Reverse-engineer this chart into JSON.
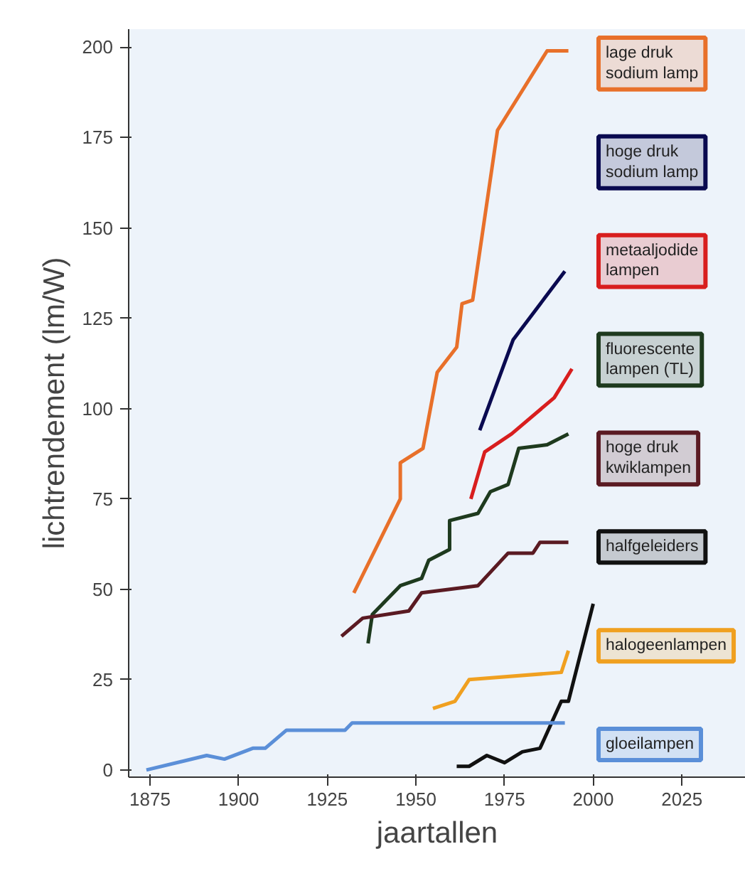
{
  "chart_data": {
    "type": "line",
    "xlabel": "jaartallen",
    "ylabel": "lichtrendement (lm/W)",
    "xlim": [
      1869,
      2043
    ],
    "ylim": [
      -2,
      205
    ],
    "xticks": [
      1875,
      1900,
      1925,
      1950,
      1975,
      2000,
      2025
    ],
    "yticks": [
      0,
      25,
      50,
      75,
      100,
      125,
      150,
      175,
      200
    ],
    "grid": false,
    "legend": "right",
    "line_style": "solid",
    "marker": "none",
    "series": [
      {
        "name": "lage druk\nsodium lamp",
        "color": "#e8702a",
        "x": [
          1932.5,
          1945.6,
          1945.6,
          1952,
          1956,
          1961.5,
          1963,
          1966,
          1973,
          1987,
          1993
        ],
        "values": [
          49,
          75,
          85,
          89,
          110,
          117,
          129,
          130,
          177,
          199,
          199
        ]
      },
      {
        "name": "hoge druk\nsodium lamp",
        "color": "#0a0a50",
        "x": [
          1968,
          1977.4,
          1992
        ],
        "values": [
          94,
          119,
          138
        ]
      },
      {
        "name": "metaaljodide\nlampen",
        "color": "#d81e1e",
        "x": [
          1965.5,
          1969.4,
          1977,
          1989,
          1994
        ],
        "values": [
          75,
          88,
          93,
          103,
          111
        ]
      },
      {
        "name": "fluorescente\nlampen (TL)",
        "color": "#1e3a1e",
        "x": [
          1936.5,
          1937.7,
          1945.6,
          1951.6,
          1953.6,
          1959.5,
          1959.5,
          1967.5,
          1971,
          1976,
          1979,
          1987,
          1993
        ],
        "values": [
          35,
          43,
          51,
          53,
          58,
          61,
          69,
          71,
          77,
          79,
          89,
          90,
          93
        ]
      },
      {
        "name": "hoge druk\nkwiklampen",
        "color": "#5a1a22",
        "x": [
          1929,
          1935,
          1948,
          1951.6,
          1967.5,
          1976,
          1983,
          1985,
          1993
        ],
        "values": [
          37,
          42,
          44,
          49,
          51,
          60,
          60,
          63,
          63
        ]
      },
      {
        "name": "halfgeleiders",
        "color": "#111111",
        "x": [
          1961.5,
          1965,
          1970,
          1975,
          1980,
          1985,
          1991,
          1993,
          2000
        ],
        "values": [
          1,
          1,
          4,
          2,
          5,
          6,
          19,
          19,
          46
        ]
      },
      {
        "name": "halogeenlampen",
        "color": "#f0a020",
        "x": [
          1954.8,
          1961,
          1965,
          1991,
          1993
        ],
        "values": [
          17,
          19,
          25,
          27,
          33
        ]
      },
      {
        "name": "gloeilampen",
        "color": "#5b8fd8",
        "x": [
          1874,
          1891,
          1896,
          1904,
          1907.5,
          1913.5,
          1930,
          1932,
          1992
        ],
        "values": [
          0,
          4,
          3,
          6,
          6,
          11,
          11,
          13,
          13
        ]
      }
    ]
  }
}
